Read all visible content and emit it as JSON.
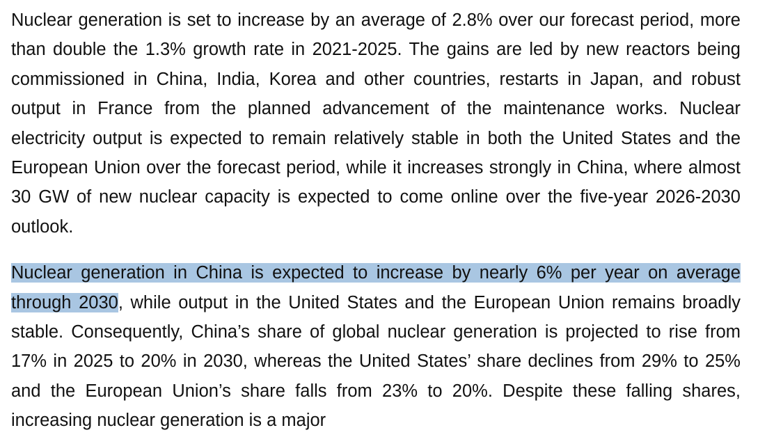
{
  "document": {
    "paragraph_1": "Nuclear generation is set to increase by an average of 2.8% over our forecast period, more than double the 1.3% growth rate in 2021-2025. The gains are led by new reactors being commissioned in China, India, Korea and other countries, restarts in Japan, and robust output in France from the planned advancement of the maintenance works. Nuclear electricity output is expected to remain relatively stable in both the United States and the European Union over the forecast period, while it increases strongly in China, where almost 30 GW of new nuclear capacity is expected to come online over the five-year 2026-2030 outlook.",
    "paragraph_2": {
      "selected_text": "Nuclear generation in China is expected to increase by nearly 6% per year on average through 2030",
      "remaining_text": ", while output in the United States and the European Union remains broadly stable. Consequently, China’s share of global nuclear generation is projected to rise from 17% in 2025 to 20% in 2030, whereas the United States’ share declines from 29% to 25% and the European Union’s share falls from 23% to 20%. Despite these falling shares, increasing nuclear generation is a major"
    },
    "selection_color": "#a9c6e2"
  }
}
